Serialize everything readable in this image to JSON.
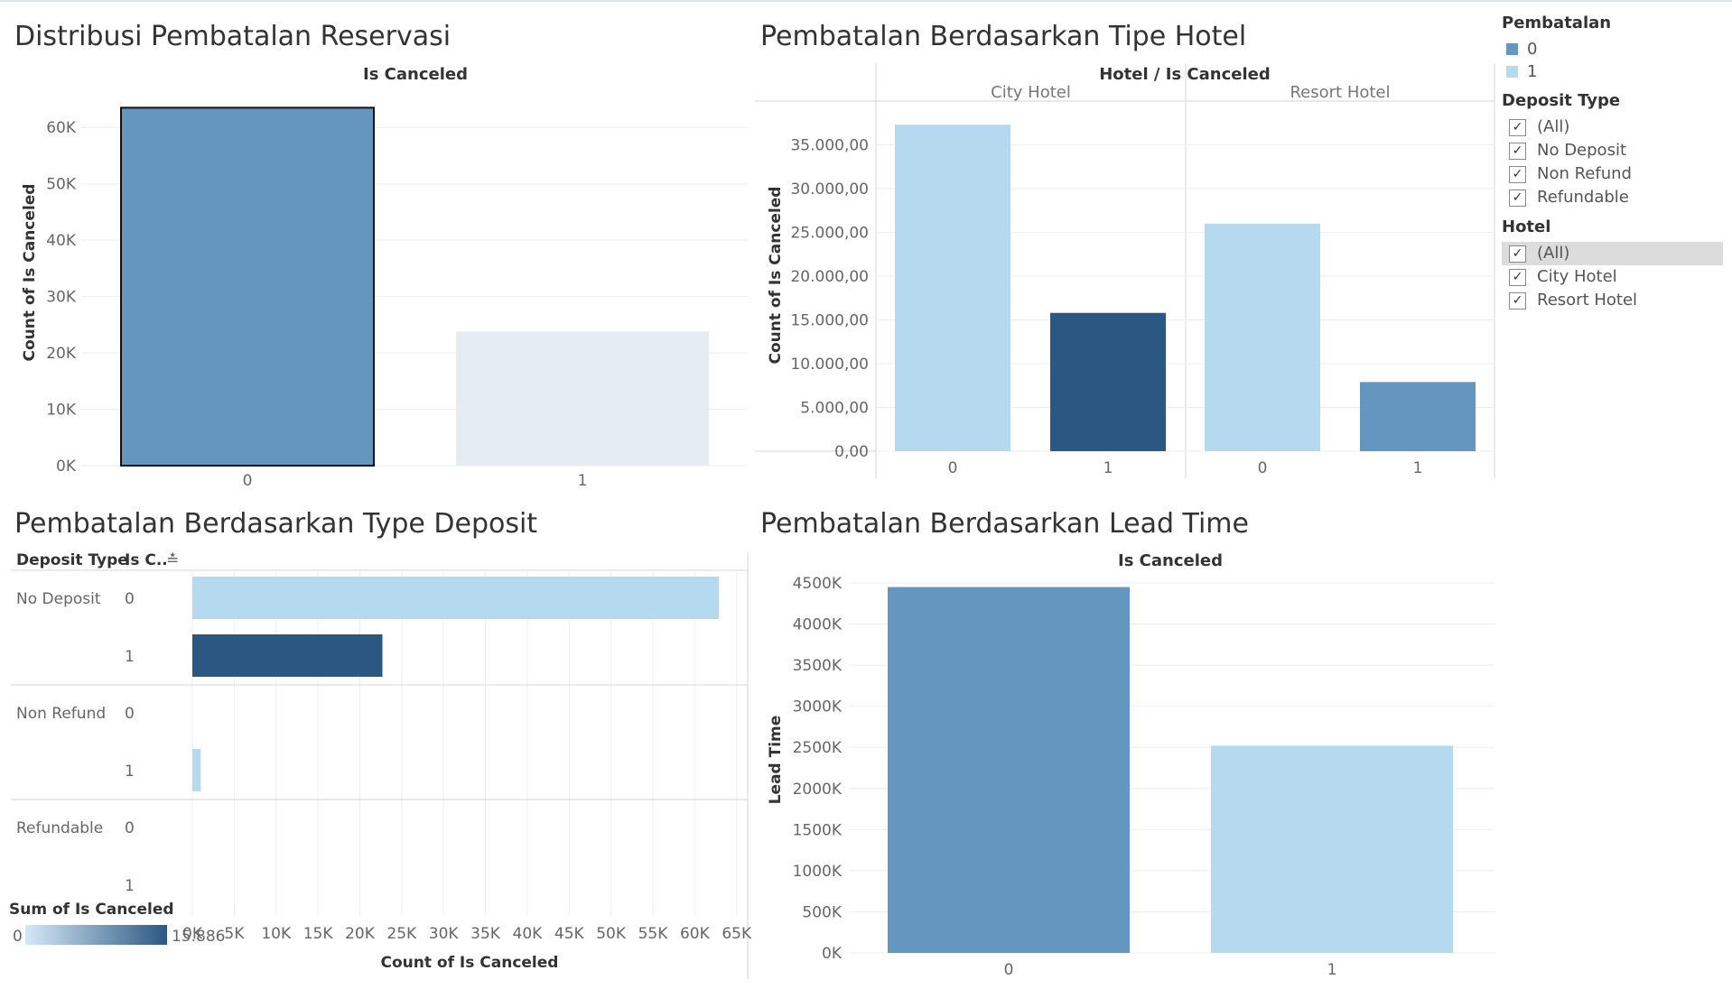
{
  "colors": {
    "mid_blue": "#6596c0",
    "light_blue": "#b5daf0",
    "dark_blue": "#2b5882",
    "pale": "#e6edf2",
    "bar_outline": "#111111"
  },
  "legend": {
    "title": "Pembatalan",
    "items": [
      {
        "label": "0",
        "color": "#6596c0"
      },
      {
        "label": "1",
        "color": "#b5daf0"
      }
    ]
  },
  "filters": {
    "deposit_type": {
      "title": "Deposit Type",
      "items": [
        {
          "label": "(All)",
          "checked": true
        },
        {
          "label": "No Deposit",
          "checked": true
        },
        {
          "label": "Non Refund",
          "checked": true
        },
        {
          "label": "Refundable",
          "checked": true
        }
      ]
    },
    "hotel": {
      "title": "Hotel",
      "items": [
        {
          "label": "(All)",
          "checked": true,
          "selected": true
        },
        {
          "label": "City Hotel",
          "checked": true
        },
        {
          "label": "Resort Hotel",
          "checked": true
        }
      ]
    }
  },
  "chart_data": [
    {
      "id": "dist",
      "type": "bar",
      "title": "Distribusi Pembatalan Reservasi",
      "header": "Is Canceled",
      "ylabel": "Count of Is Canceled",
      "categories": [
        "0",
        "1"
      ],
      "values": [
        63500,
        23800
      ],
      "colors": [
        "#6596c0",
        "#e6edf2"
      ],
      "highlight_index": 0,
      "ylim": [
        0,
        65000
      ],
      "yticks": [
        {
          "v": 0,
          "label": "0K"
        },
        {
          "v": 10000,
          "label": "10K"
        },
        {
          "v": 20000,
          "label": "20K"
        },
        {
          "v": 30000,
          "label": "30K"
        },
        {
          "v": 40000,
          "label": "40K"
        },
        {
          "v": 50000,
          "label": "50K"
        },
        {
          "v": 60000,
          "label": "60K"
        }
      ],
      "grid": true
    },
    {
      "id": "hotel",
      "type": "bar",
      "title": "Pembatalan Berdasarkan Tipe Hotel",
      "header": "Hotel  /  Is Canceled",
      "ylabel": "Count of Is Canceled",
      "panels": [
        {
          "name": "City Hotel",
          "categories": [
            "0",
            "1"
          ],
          "values": [
            37300,
            15800
          ],
          "colors": [
            "#b5daf0",
            "#2b5882"
          ]
        },
        {
          "name": "Resort Hotel",
          "categories": [
            "0",
            "1"
          ],
          "values": [
            26000,
            7900
          ],
          "colors": [
            "#b5daf0",
            "#6596c0"
          ]
        }
      ],
      "ylim": [
        0,
        40000
      ],
      "yticks": [
        {
          "v": 0,
          "label": "0,00"
        },
        {
          "v": 5000,
          "label": "5.000,00"
        },
        {
          "v": 10000,
          "label": "10.000,00"
        },
        {
          "v": 15000,
          "label": "15.000,00"
        },
        {
          "v": 20000,
          "label": "20.000,00"
        },
        {
          "v": 25000,
          "label": "25.000,00"
        },
        {
          "v": 30000,
          "label": "30.000,00"
        },
        {
          "v": 35000,
          "label": "35.000,00"
        }
      ],
      "grid": true
    },
    {
      "id": "deposit",
      "type": "bar",
      "orientation": "horizontal",
      "title": "Pembatalan Berdasarkan Type Deposit",
      "row_header_1": "Deposit Type",
      "row_header_2": "Is C..",
      "sort_glyph": "≛",
      "xlabel": "Count of Is Canceled",
      "groups": [
        {
          "name": "No Deposit",
          "rows": [
            {
              "label": "0",
              "value": 62900,
              "color": "#b5daf0"
            },
            {
              "label": "1",
              "value": 22700,
              "color": "#2b5882"
            }
          ]
        },
        {
          "name": "Non Refund",
          "rows": [
            {
              "label": "0",
              "value": 0,
              "color": "#b5daf0"
            },
            {
              "label": "1",
              "value": 1000,
              "color": "#b5daf0"
            }
          ]
        },
        {
          "name": "Refundable",
          "rows": [
            {
              "label": "0",
              "value": 0,
              "color": "#b5daf0"
            },
            {
              "label": "1",
              "value": 0,
              "color": "#b5daf0"
            }
          ]
        }
      ],
      "xlim": [
        0,
        66000
      ],
      "xticks": [
        {
          "v": 0,
          "label": "0K"
        },
        {
          "v": 5000,
          "label": "5K"
        },
        {
          "v": 10000,
          "label": "10K"
        },
        {
          "v": 15000,
          "label": "15K"
        },
        {
          "v": 20000,
          "label": "20K"
        },
        {
          "v": 25000,
          "label": "25K"
        },
        {
          "v": 30000,
          "label": "30K"
        },
        {
          "v": 35000,
          "label": "35K"
        },
        {
          "v": 40000,
          "label": "40K"
        },
        {
          "v": 45000,
          "label": "45K"
        },
        {
          "v": 50000,
          "label": "50K"
        },
        {
          "v": 55000,
          "label": "55K"
        },
        {
          "v": 60000,
          "label": "60K"
        },
        {
          "v": 65000,
          "label": "65K"
        }
      ],
      "grid": true,
      "color_legend": {
        "title": "Sum of Is Canceled",
        "min_label": "0",
        "max_label": "15.886",
        "from": "#d5e9f7",
        "to": "#2b5882"
      }
    },
    {
      "id": "lead",
      "type": "bar",
      "title": "Pembatalan Berdasarkan Lead Time",
      "header": "Is Canceled",
      "ylabel": "Lead Time",
      "categories": [
        "0",
        "1"
      ],
      "values": [
        4450000,
        2520000
      ],
      "colors": [
        "#6596c0",
        "#b5daf0"
      ],
      "ylim": [
        0,
        4500000
      ],
      "yticks": [
        {
          "v": 0,
          "label": "0K"
        },
        {
          "v": 500000,
          "label": "500K"
        },
        {
          "v": 1000000,
          "label": "1000K"
        },
        {
          "v": 1500000,
          "label": "1500K"
        },
        {
          "v": 2000000,
          "label": "2000K"
        },
        {
          "v": 2500000,
          "label": "2500K"
        },
        {
          "v": 3000000,
          "label": "3000K"
        },
        {
          "v": 3500000,
          "label": "3500K"
        },
        {
          "v": 4000000,
          "label": "4000K"
        },
        {
          "v": 4500000,
          "label": "4500K"
        }
      ],
      "grid": true
    }
  ]
}
